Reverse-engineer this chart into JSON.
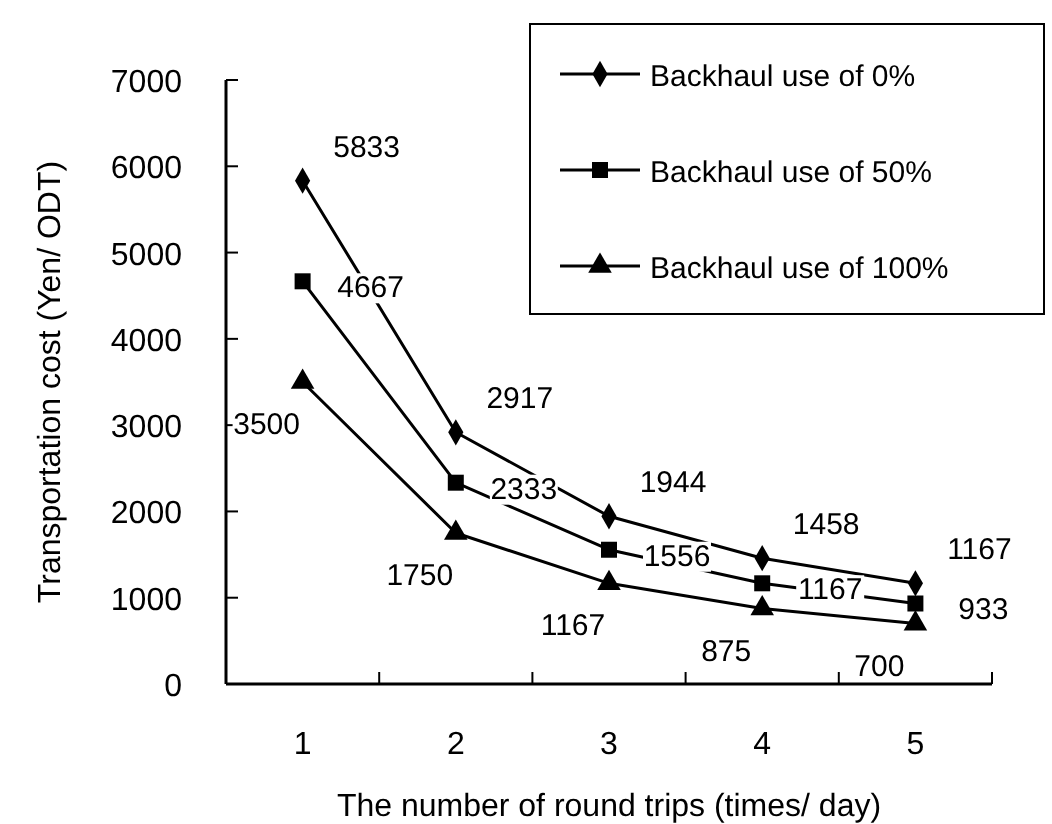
{
  "chart_data": {
    "type": "line",
    "xlabel": "The number of round trips (times/ day)",
    "ylabel": "Transportation cost (Yen/ ODT)",
    "categories": [
      "1",
      "2",
      "3",
      "4",
      "5"
    ],
    "series": [
      {
        "name": "Backhaul use of 0%",
        "color": "#000000",
        "marker": "diamond",
        "values": [
          5833,
          2917,
          1944,
          1458,
          1167
        ]
      },
      {
        "name": "Backhaul use of 50%",
        "color": "#000000",
        "marker": "square",
        "values": [
          4667,
          2333,
          1556,
          1167,
          933
        ]
      },
      {
        "name": "Backhaul use of 100%",
        "color": "#000000",
        "marker": "triangle",
        "values": [
          3500,
          1750,
          1167,
          875,
          700
        ]
      }
    ],
    "ylim": [
      0,
      7000
    ],
    "yticks": [
      0,
      1000,
      2000,
      3000,
      4000,
      5000,
      6000,
      7000
    ],
    "grid": false,
    "legend": "top right",
    "data_labels": true,
    "line_style": "solid"
  }
}
